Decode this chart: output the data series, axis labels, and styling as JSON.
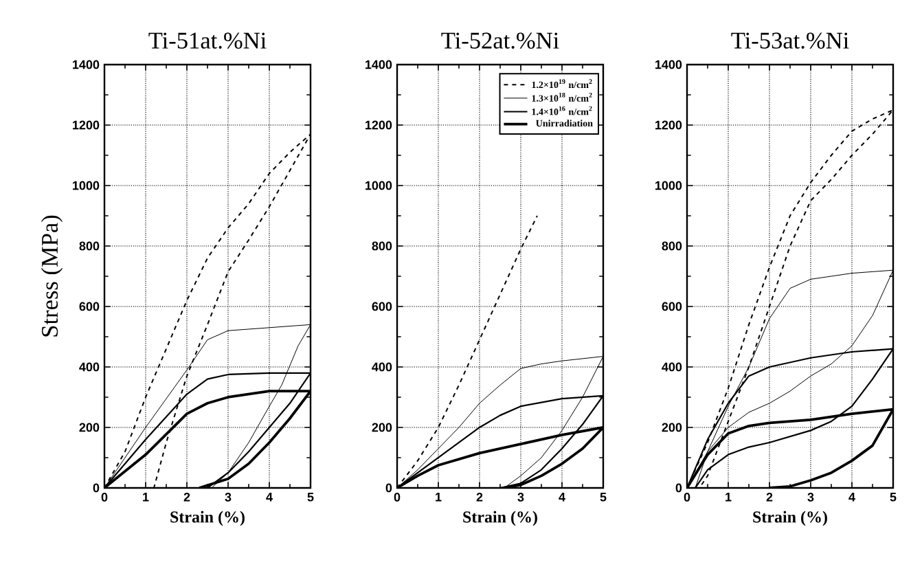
{
  "chart_data": [
    {
      "type": "line",
      "title": "Ti-51at.%Ni",
      "xlabel": "Strain (%)",
      "ylabel": "Stress (MPa)",
      "xlim": [
        0,
        5
      ],
      "ylim": [
        0,
        1400
      ],
      "xticks": [
        0,
        1,
        2,
        3,
        4,
        5
      ],
      "yticks": [
        0,
        200,
        400,
        600,
        800,
        1000,
        1200,
        1400
      ],
      "grid": true,
      "series": [
        {
          "color": "#000000",
          "line_style": "dashed",
          "x": [
            0,
            0.5,
            1,
            1.5,
            2,
            2.5,
            3,
            3.5,
            4,
            4.5,
            5,
            4.5,
            4,
            3.5,
            3,
            2.5,
            2,
            1.5,
            1.2
          ],
          "values": [
            0,
            120,
            300,
            460,
            620,
            760,
            860,
            940,
            1040,
            1110,
            1170,
            1050,
            930,
            820,
            715,
            540,
            370,
            150,
            0
          ]
        },
        {
          "color": "#000000",
          "line_style": "solid",
          "x": [
            0,
            1,
            2,
            2.5,
            3,
            5,
            4.7,
            4.3,
            4,
            3.5,
            3,
            2.6
          ],
          "values": [
            0,
            200,
            390,
            490,
            520,
            540,
            470,
            340,
            270,
            150,
            50,
            0
          ]
        },
        {
          "color": "#000000",
          "line_style": "solid",
          "x": [
            0,
            1,
            2,
            2.5,
            3,
            4,
            5,
            4.5,
            4,
            3.5,
            3,
            2.5
          ],
          "values": [
            0,
            160,
            310,
            360,
            375,
            380,
            380,
            280,
            200,
            120,
            50,
            0
          ]
        },
        {
          "color": "#000000",
          "line_style": "solid",
          "x": [
            0,
            1,
            2,
            2.5,
            3,
            4,
            5,
            4.5,
            4,
            3.5,
            3,
            2.3
          ],
          "values": [
            0,
            110,
            245,
            280,
            300,
            320,
            320,
            230,
            150,
            80,
            30,
            0
          ]
        }
      ]
    },
    {
      "type": "line",
      "title": "Ti-52at.%Ni",
      "xlabel": "Strain (%)",
      "xlim": [
        0,
        5
      ],
      "ylim": [
        0,
        1400
      ],
      "xticks": [
        0,
        1,
        2,
        3,
        4,
        5
      ],
      "yticks": [
        0,
        200,
        400,
        600,
        800,
        1000,
        1200,
        1400
      ],
      "grid": true,
      "legend": "top right",
      "series": [
        {
          "name": "1.2×10$^{19}$ n/cm$^{2}$",
          "color": "#000000",
          "line_style": "dashed",
          "x": [
            0,
            0.5,
            1,
            1.5,
            2,
            2.5,
            3,
            3.4
          ],
          "values": [
            0,
            90,
            200,
            340,
            490,
            640,
            790,
            900
          ]
        },
        {
          "name": "1.3×10$^{18}$ n/cm$^{2}$",
          "color": "#000000",
          "line_style": "solid",
          "x": [
            0,
            0.5,
            1,
            1.5,
            2,
            2.5,
            3,
            3.5,
            4,
            5,
            4.5,
            4,
            3.5,
            3,
            2.6
          ],
          "values": [
            0,
            60,
            130,
            200,
            280,
            340,
            395,
            410,
            420,
            435,
            300,
            190,
            100,
            40,
            0
          ]
        },
        {
          "name": "1.4×10$^{16}$ n/cm$^{2}$",
          "color": "#000000",
          "line_style": "solid",
          "x": [
            0,
            1,
            2,
            2.5,
            3,
            4,
            5,
            4.5,
            4,
            3.5,
            3,
            2.5
          ],
          "values": [
            0,
            100,
            200,
            240,
            270,
            295,
            305,
            210,
            130,
            60,
            15,
            0
          ]
        },
        {
          "name": "Unirradiation",
          "color": "#000000",
          "line_style": "solid",
          "x": [
            0,
            0.5,
            1,
            2,
            3,
            4,
            5,
            4.5,
            4,
            3.5,
            3,
            2.6
          ],
          "values": [
            0,
            40,
            75,
            115,
            145,
            175,
            200,
            130,
            80,
            40,
            10,
            0
          ]
        }
      ]
    },
    {
      "type": "line",
      "title": "Ti-53at.%Ni",
      "xlabel": "Strain (%)",
      "xlim": [
        0,
        5
      ],
      "ylim": [
        0,
        1400
      ],
      "xticks": [
        0,
        1,
        2,
        3,
        4,
        5
      ],
      "yticks": [
        0,
        200,
        400,
        600,
        800,
        1000,
        1200,
        1400
      ],
      "grid": true,
      "series": [
        {
          "color": "#000000",
          "line_style": "dashed",
          "x": [
            0,
            0.5,
            1,
            1.5,
            2,
            2.5,
            3,
            3.5,
            4,
            4.5,
            5,
            4.5,
            4,
            3.5,
            3,
            2.5,
            2,
            1.5,
            1,
            0.5,
            0.3
          ],
          "values": [
            0,
            150,
            330,
            540,
            730,
            900,
            1010,
            1100,
            1180,
            1220,
            1250,
            1170,
            1100,
            1020,
            950,
            800,
            600,
            400,
            220,
            40,
            0
          ]
        },
        {
          "color": "#000000",
          "line_style": "solid",
          "x": [
            0,
            0.5,
            1,
            1.5,
            2,
            2.5,
            3,
            4,
            5,
            4.5,
            4,
            3.5,
            3,
            2.5,
            2,
            1.5,
            1,
            0.5,
            0.2
          ],
          "values": [
            0,
            120,
            270,
            400,
            560,
            660,
            690,
            710,
            720,
            570,
            470,
            410,
            370,
            320,
            280,
            250,
            200,
            120,
            0
          ]
        },
        {
          "color": "#000000",
          "line_style": "solid",
          "x": [
            0,
            0.5,
            1,
            1.5,
            2,
            3,
            4,
            5,
            4.5,
            4,
            3.5,
            3,
            2,
            1.5,
            1,
            0.5,
            0.2
          ],
          "values": [
            0,
            160,
            280,
            370,
            400,
            430,
            450,
            460,
            360,
            270,
            220,
            190,
            150,
            135,
            110,
            60,
            0
          ]
        },
        {
          "color": "#000000",
          "line_style": "solid",
          "x": [
            0,
            0.5,
            1,
            1.5,
            2,
            3,
            4,
            5,
            4.5,
            4,
            3.5,
            3,
            2.5,
            2
          ],
          "values": [
            0,
            110,
            180,
            205,
            215,
            225,
            245,
            260,
            140,
            90,
            50,
            25,
            5,
            0
          ]
        }
      ]
    }
  ]
}
